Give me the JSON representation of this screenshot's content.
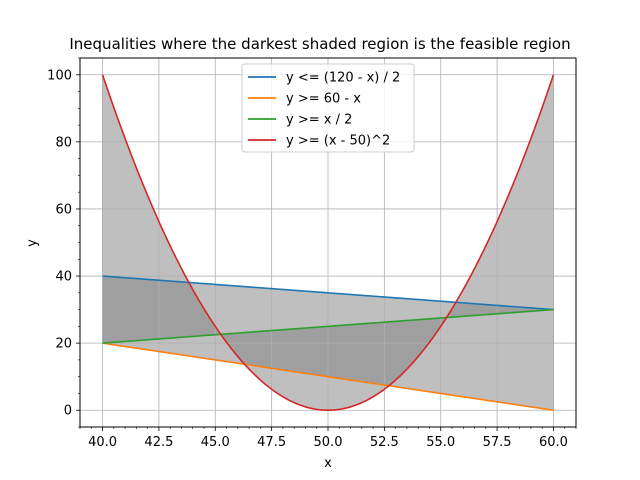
{
  "chart_data": {
    "type": "line",
    "title": "Inequalities where the darkest shaded region is the feasible region",
    "xlabel": "x",
    "ylabel": "y",
    "xlim": [
      39.0,
      61.0
    ],
    "ylim": [
      -5.0,
      105.0
    ],
    "x_ticks": [
      40.0,
      42.5,
      45.0,
      47.5,
      50.0,
      52.5,
      55.0,
      57.5,
      60.0
    ],
    "x_tick_labels": [
      "40.0",
      "42.5",
      "45.0",
      "47.5",
      "50.0",
      "52.5",
      "55.0",
      "57.5",
      "60.0"
    ],
    "y_ticks": [
      0,
      20,
      40,
      60,
      80,
      100
    ],
    "y_tick_labels": [
      "0",
      "20",
      "40",
      "60",
      "80",
      "100"
    ],
    "x_minor_step": 0.5,
    "y_minor_step": 5,
    "grid": true,
    "legend_position": "upper center",
    "x_range": [
      40,
      60
    ],
    "series": [
      {
        "name": "y <= (120 - x) / 2",
        "color": "#1f77b4",
        "formula": "(120 - x) / 2",
        "x": [
          40,
          60
        ],
        "y": [
          40,
          30
        ]
      },
      {
        "name": "y >= 60 - x",
        "color": "#ff7f0e",
        "formula": "60 - x",
        "x": [
          40,
          60
        ],
        "y": [
          20,
          0
        ]
      },
      {
        "name": "y >= x / 2",
        "color": "#2ca02c",
        "formula": "x / 2",
        "x": [
          40,
          60
        ],
        "y": [
          20,
          30
        ]
      },
      {
        "name": "y >= (x - 50)^2",
        "color": "#d62728",
        "formula": "(x - 50)^2",
        "x": [
          40,
          45,
          50,
          55,
          60
        ],
        "y": [
          100,
          25,
          0,
          25,
          100
        ]
      }
    ],
    "shaded_regions": [
      {
        "between": [
          "y <= (120 - x) / 2",
          "y >= 60 - x"
        ],
        "color": "#808080",
        "alpha": 0.5
      },
      {
        "between": [
          "y >= x / 2",
          "y >= (x - 50)^2"
        ],
        "color": "#808080",
        "alpha": 0.5
      }
    ]
  }
}
